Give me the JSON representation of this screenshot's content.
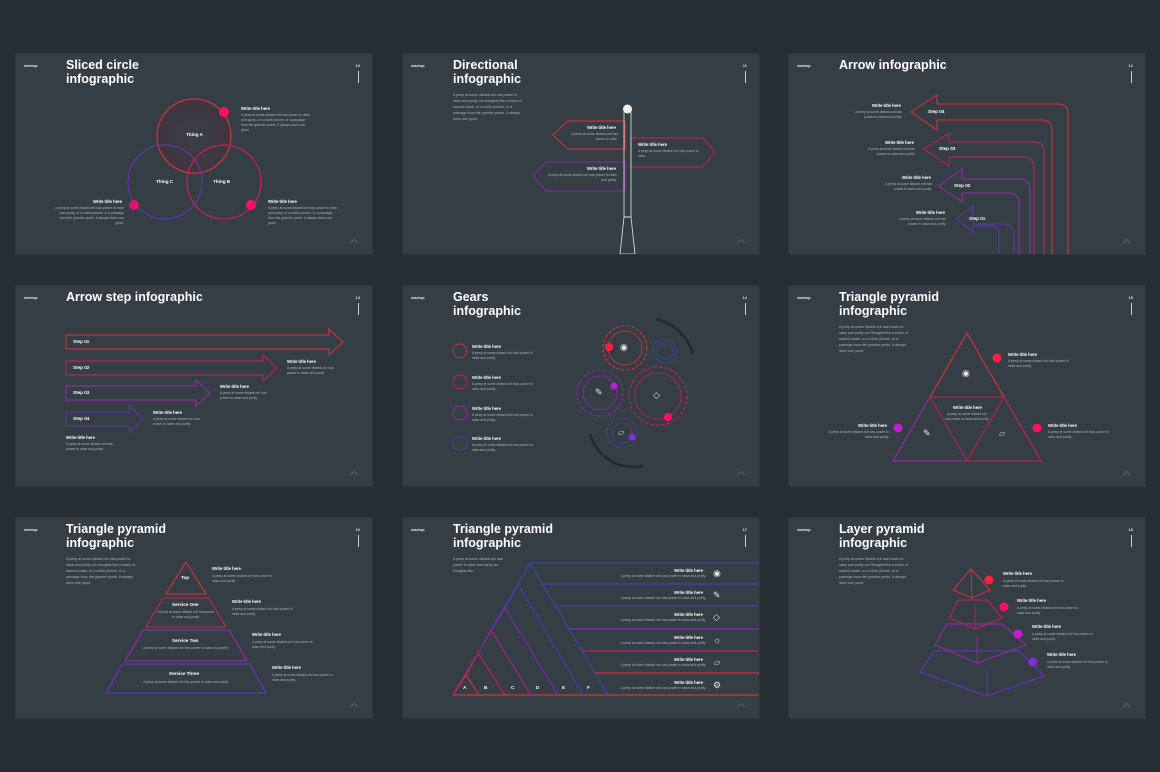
{
  "brand": "startup",
  "write_title": "Write title here",
  "colors": {
    "background": "#262d33",
    "slide_bg": "#363e45",
    "red": "#e0303a",
    "crimson": "#e0205a",
    "magenta": "#b01ab8",
    "purple": "#6a34c8",
    "blue": "#3a4aa8",
    "pink_dot": "#ff1060"
  },
  "slides": [
    {
      "number": "10",
      "title": "Sliced circle\ninfographic",
      "circles": [
        "Thing A",
        "Thing B",
        "Thing C"
      ],
      "dots": [
        "01",
        "02",
        "03"
      ],
      "blocks": [
        {
          "title": "Write title here",
          "body": "A peep at some distant orb has power to raise and purify, or a noble picture, or a passage from the grander poets. It always does one good."
        },
        {
          "title": "Write title here",
          "body": "A peep at some distant orb has power to raise and purify, or a noble picture, or a passage from the grander poets. It always does one good."
        },
        {
          "title": "Write title here",
          "body": "A peep at some distant orb has power to raise and purify, or a noble picture, or a passage from the grander poets. It always does one good."
        }
      ]
    },
    {
      "number": "11",
      "title": "Directional\ninfographic",
      "intro": "A peep at some distant orb has power to raise and purify our thoughts like a strain of sacred music, or a noble picture, or a passage from the grander poets. It always does one good.",
      "signs": [
        {
          "title": "Write title here",
          "body": "A peep at some distant orb has power to raise."
        },
        {
          "title": "Write title here",
          "body": "A peep at some distant orb has power to raise."
        },
        {
          "title": "Write title here",
          "body": "A peep at some distant orb has power to raise and purify."
        }
      ]
    },
    {
      "number": "12",
      "title": "Arrow infographic",
      "steps": [
        {
          "label": "Step 04",
          "title": "Write title here",
          "body": "A peep at some distant orb has power to raise and purify."
        },
        {
          "label": "Step 03",
          "title": "Write title here",
          "body": "A peep at some distant orb has power to raise and purify."
        },
        {
          "label": "Step 02",
          "title": "Write title here",
          "body": "A peep at some distant orb has power to raise and purify."
        },
        {
          "label": "Step 01",
          "title": "Write title here",
          "body": "A peep at some distant orb has power to raise and purify."
        }
      ]
    },
    {
      "number": "13",
      "title": "Arrow step infographic",
      "steps": [
        {
          "label": "Step 01",
          "title": "Write title here",
          "body": "A peep at some distant orb has power to raise and purify."
        },
        {
          "label": "Step 02",
          "title": "Write title here",
          "body": "A peep at some distant orb has power to raise and purify."
        },
        {
          "label": "Step 03",
          "title": "Write title here",
          "body": "A peep at some distant orb has power to raise and purify."
        },
        {
          "label": "Step 04",
          "title": "Write title here",
          "body": "A peep at some distant orb has power to raise and purify."
        }
      ]
    },
    {
      "number": "14",
      "title": "Gears\ninfographic",
      "items": [
        {
          "title": "Write title here",
          "body": "A peep at some distant orb has power to raise and purify."
        },
        {
          "title": "Write title here",
          "body": "A peep at some distant orb has power to raise and purify."
        },
        {
          "title": "Write title here",
          "body": "A peep at some distant orb has power to raise and purify."
        },
        {
          "title": "Write title here",
          "body": "A peep at some distant orb has power to raise and purify."
        }
      ],
      "icons": [
        "binoculars-icon",
        "pencil-icon",
        "diamond-icon",
        "bell-icon"
      ],
      "dots": [
        "01",
        "02",
        "03",
        "04"
      ]
    },
    {
      "number": "15",
      "title": "Triangle pyramid\ninfographic",
      "intro": "A peep at some distant orb has power to raise and purify our thoughts like a strain of sacred music, or a noble picture, or a passage from the grander poets. It always does one good.",
      "blocks": [
        {
          "title": "Write title here",
          "body": "A peep at some distant orb has power to raise and purify."
        },
        {
          "title": "Write title here",
          "body": "A peep at some distant orb has power to raise and purify."
        },
        {
          "title": "Write title here",
          "body": "A peep at some distant orb has power to raise and purify."
        },
        {
          "title": "Write title here",
          "body": "A peep at some distant orb has power to raise and purify."
        }
      ],
      "dots": [
        "01",
        "02",
        "03"
      ]
    },
    {
      "number": "16",
      "title": "Triangle pyramid\ninfographic",
      "intro": "A peep at some distant orb has power to raise and purify our thoughts like a strain of sacred music, or a noble picture, or a passage from the grander poets. It always does one good.",
      "levels": [
        {
          "label": "Top",
          "body": ""
        },
        {
          "label": "Service One",
          "body": "A peep at some distant orb has power to raise and purify."
        },
        {
          "label": "Service Two",
          "body": "A peep at some distant orb has power to raise and purify."
        },
        {
          "label": "Service Three",
          "body": "A peep at some distant orb has power to raise and purify."
        }
      ],
      "blocks": [
        {
          "title": "Write title here",
          "body": "A peep at some distant orb has power to raise and purify."
        },
        {
          "title": "Write title here",
          "body": "A peep at some distant orb has power to raise and purify."
        },
        {
          "title": "Write title here",
          "body": "A peep at some distant orb has power to raise and purify."
        },
        {
          "title": "Write title here",
          "body": "A peep at some distant orb has power to raise and purify."
        }
      ]
    },
    {
      "number": "17",
      "title": "Triangle pyramid\ninfographic",
      "intro": "A peep at some distant orb has power to raise and purify our thoughts like.",
      "letters": [
        "A",
        "B",
        "C",
        "D",
        "E",
        "F"
      ],
      "rows": [
        {
          "title": "Write title here",
          "body": "A peep at some distant orb has power to raise and purify.",
          "icon": "binoculars-icon"
        },
        {
          "title": "Write title here",
          "body": "A peep at some distant orb has power to raise and purify.",
          "icon": "pencil-icon"
        },
        {
          "title": "Write title here",
          "body": "A peep at some distant orb has power to raise and purify.",
          "icon": "diamond-icon"
        },
        {
          "title": "Write title here",
          "body": "A peep at some distant orb has power to raise and purify.",
          "icon": "lightbulb-icon"
        },
        {
          "title": "Write title here",
          "body": "A peep at some distant orb has power to raise and purify.",
          "icon": "bell-icon"
        },
        {
          "title": "Write title here",
          "body": "A peep at some distant orb has power to raise and purify.",
          "icon": "gear-icon"
        }
      ]
    },
    {
      "number": "18",
      "title": "Layer pyramid\ninfographic",
      "intro": "A peep at some distant orb has power to raise and purify our thoughts like a strain of sacred music, or a noble picture, or a passage from the grander poets. It always does one good.",
      "blocks": [
        {
          "title": "Write title here",
          "body": "A peep at some distant orb has power to raise and purify."
        },
        {
          "title": "Write title here",
          "body": "A peep at some distant orb has power to raise and purify."
        },
        {
          "title": "Write title here",
          "body": "A peep at some distant orb has power to raise and purify."
        },
        {
          "title": "Write title here",
          "body": "A peep at some distant orb has power to raise and purify."
        }
      ],
      "dots": [
        "01",
        "02",
        "03",
        "04"
      ]
    }
  ]
}
